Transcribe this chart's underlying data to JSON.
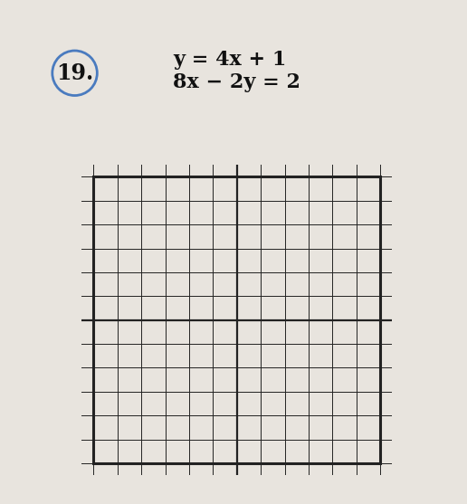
{
  "problem_number": "19.",
  "equation1": "y = 4x + 1",
  "equation2": "8x − 2y = 2",
  "background_color": "#e8e4de",
  "grid_bg": "#f5f2ee",
  "grid_color": "#222222",
  "circle_color": "#4a7bbf",
  "text_color": "#111111",
  "font_size_number": 17,
  "font_size_eq": 16,
  "num_cells": 12,
  "arrow_extension": 0.55
}
